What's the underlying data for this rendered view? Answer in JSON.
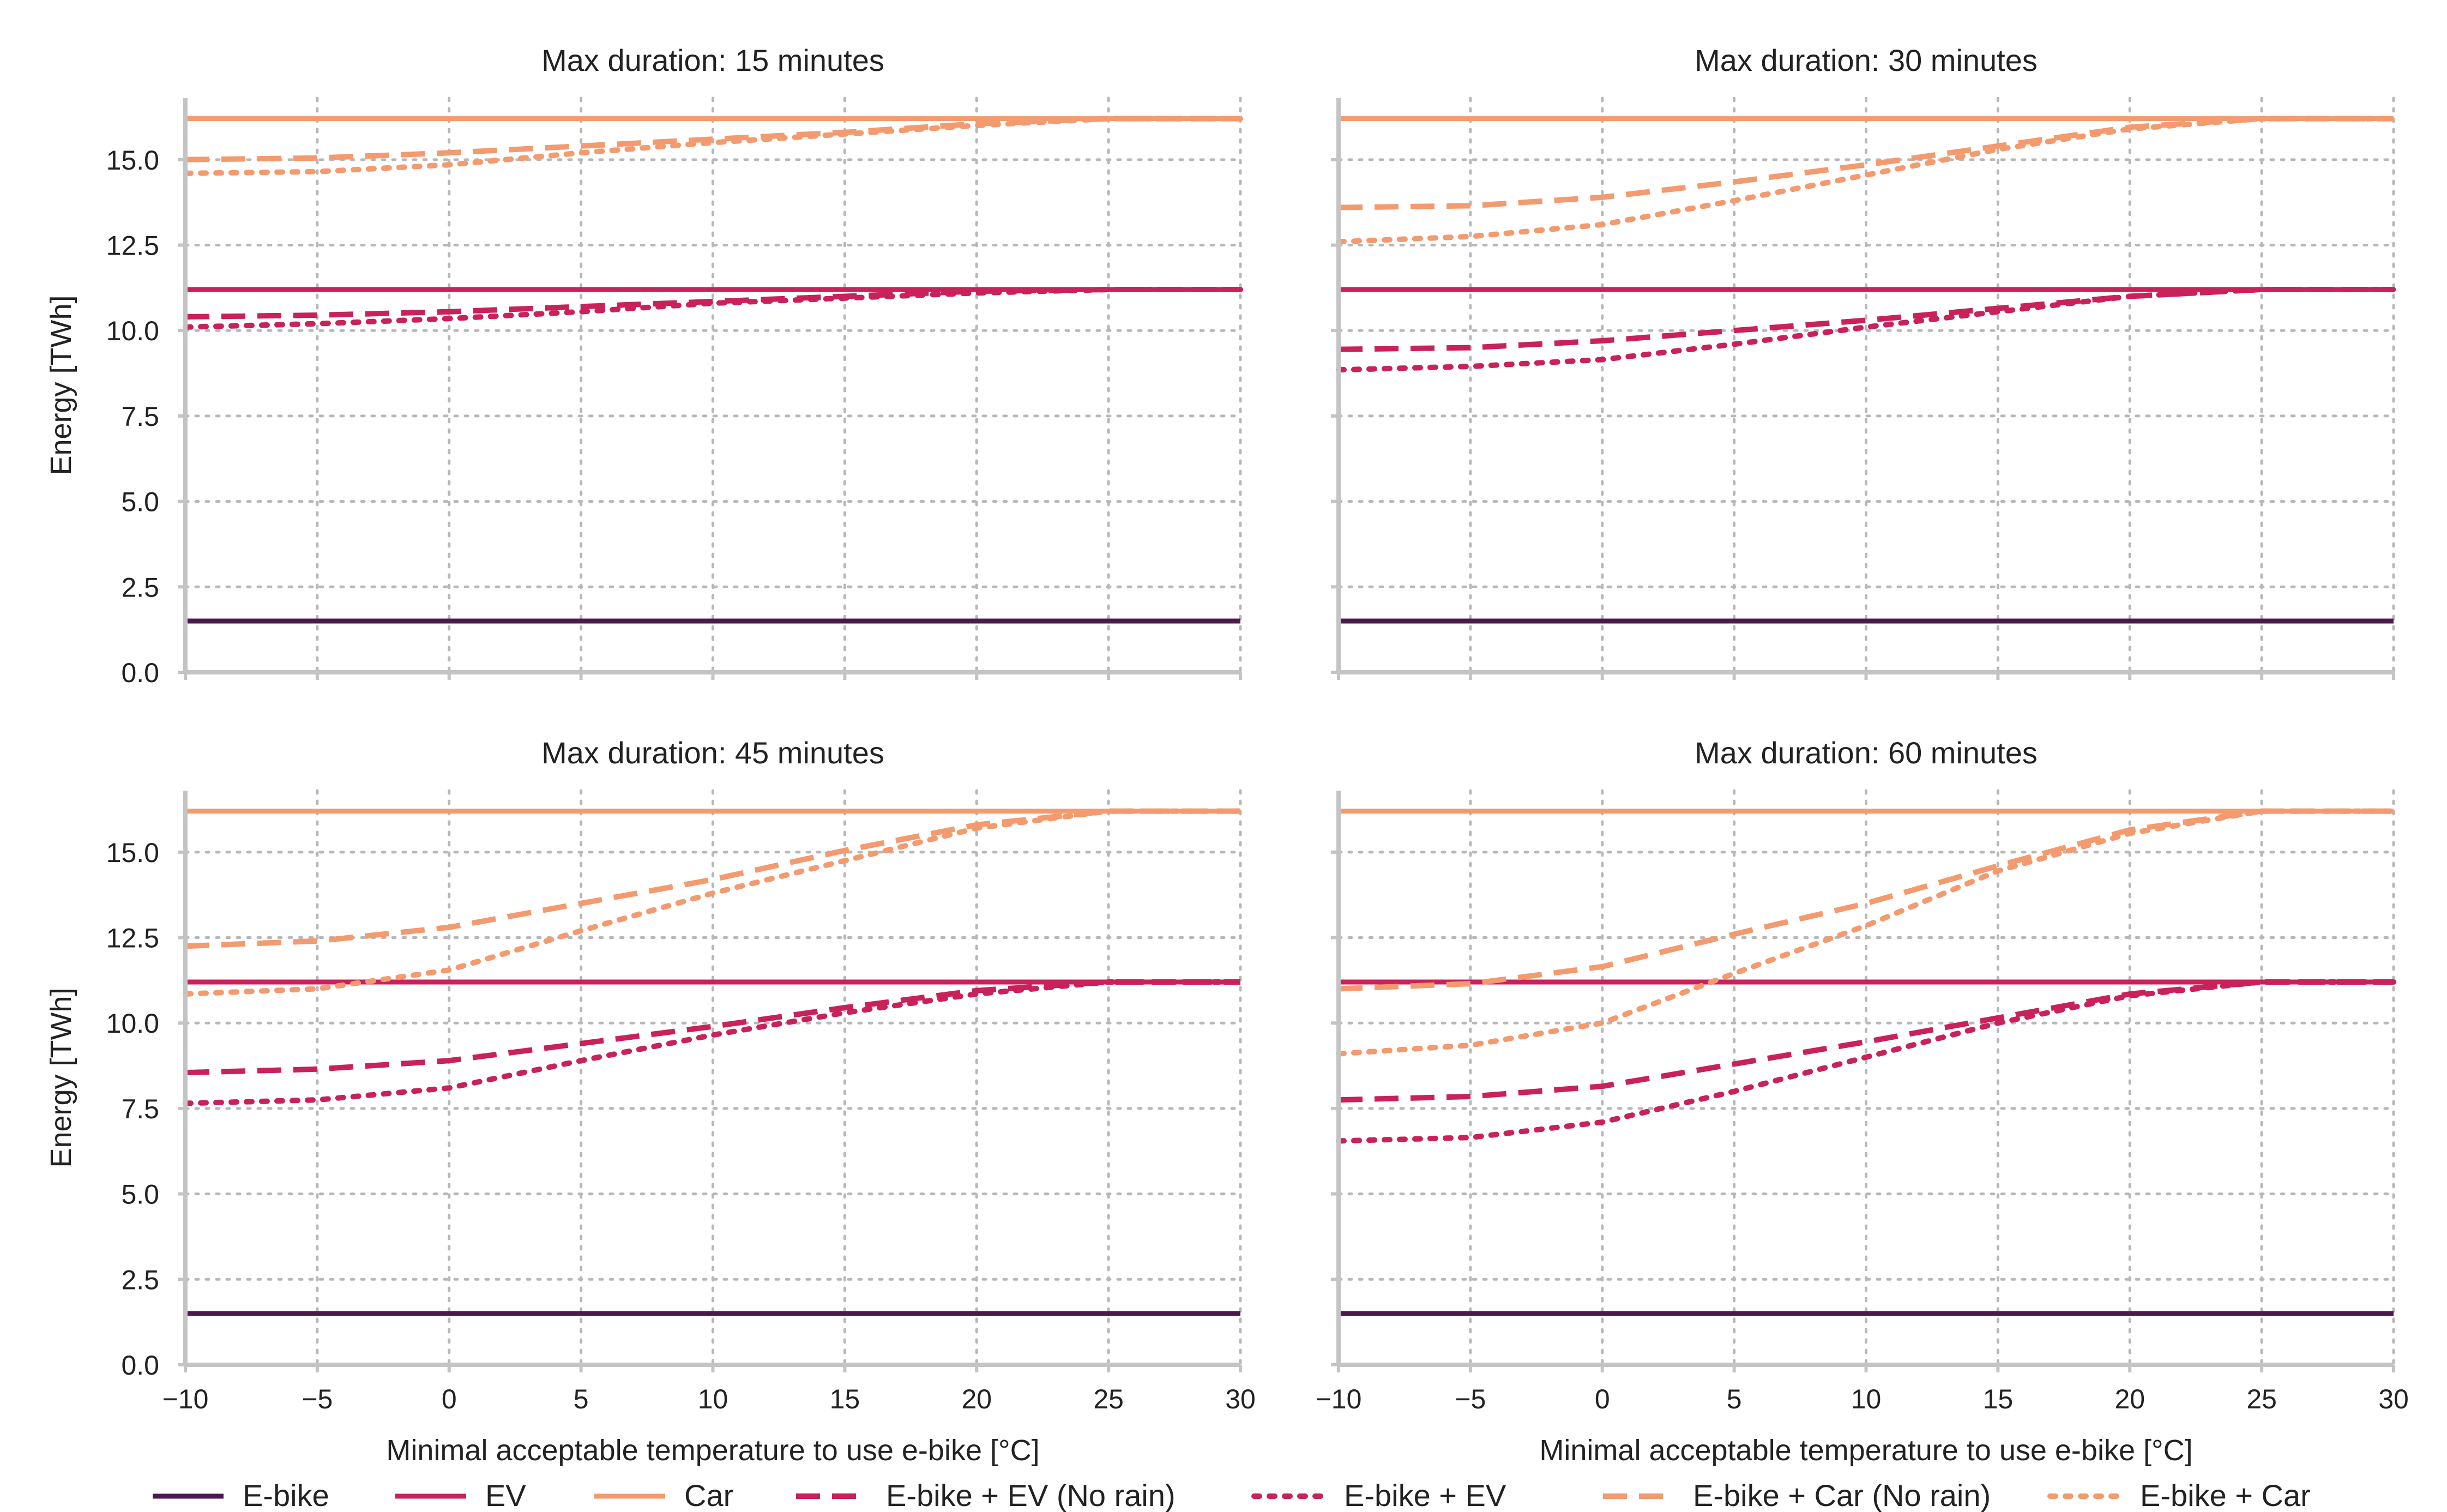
{
  "colors": {
    "ebike": "#4a1a4d",
    "ev": "#c9215a",
    "car": "#f39a6e",
    "grid": "#b8b8b8",
    "spine": "#c4c4c4"
  },
  "legend": [
    {
      "label": "E-bike",
      "color": "#4a1a4d",
      "style": "solid"
    },
    {
      "label": "EV",
      "color": "#c9215a",
      "style": "solid"
    },
    {
      "label": "Car",
      "color": "#f39a6e",
      "style": "solid"
    },
    {
      "label": "E-bike + EV (No rain)",
      "color": "#c9215a",
      "style": "dashed"
    },
    {
      "label": "E-bike + EV",
      "color": "#c9215a",
      "style": "dotted"
    },
    {
      "label": "E-bike + Car (No rain)",
      "color": "#f39a6e",
      "style": "dashed"
    },
    {
      "label": "E-bike + Car",
      "color": "#f39a6e",
      "style": "dotted"
    }
  ],
  "chart_data": [
    {
      "type": "line",
      "title": "Max duration: 15 minutes",
      "xlabel": "",
      "ylabel": "Energy [TWh]",
      "xlim": [
        -10,
        30
      ],
      "ylim": [
        0,
        16.8
      ],
      "xticks": [
        -10,
        -5,
        0,
        5,
        10,
        15,
        20,
        25,
        30
      ],
      "xtick_labels": [
        "−10",
        "−5",
        "0",
        "5",
        "10",
        "15",
        "20",
        "25",
        "30"
      ],
      "yticks": [
        0,
        2.5,
        5,
        7.5,
        10,
        12.5,
        15
      ],
      "ytick_labels": [
        "0.0",
        "2.5",
        "5.0",
        "7.5",
        "10.0",
        "12.5",
        "15.0"
      ],
      "show_xtick_labels": false,
      "show_ytick_labels": true,
      "grid": true,
      "x": [
        -10,
        -5,
        0,
        5,
        10,
        15,
        20,
        25,
        30
      ],
      "series": [
        {
          "name": "E-bike",
          "style": "solid",
          "color": "#4a1a4d",
          "values": [
            1.5,
            1.5,
            1.5,
            1.5,
            1.5,
            1.5,
            1.5,
            1.5,
            1.5
          ]
        },
        {
          "name": "EV",
          "style": "solid",
          "color": "#c9215a",
          "values": [
            11.2,
            11.2,
            11.2,
            11.2,
            11.2,
            11.2,
            11.2,
            11.2,
            11.2
          ]
        },
        {
          "name": "Car",
          "style": "solid",
          "color": "#f39a6e",
          "values": [
            16.2,
            16.2,
            16.2,
            16.2,
            16.2,
            16.2,
            16.2,
            16.2,
            16.2
          ]
        },
        {
          "name": "E-bike + EV (No rain)",
          "style": "dashed",
          "color": "#c9215a",
          "values": [
            10.4,
            10.45,
            10.55,
            10.7,
            10.85,
            11.0,
            11.15,
            11.2,
            11.2
          ]
        },
        {
          "name": "E-bike + EV",
          "style": "dotted",
          "color": "#c9215a",
          "values": [
            10.1,
            10.2,
            10.35,
            10.55,
            10.8,
            10.95,
            11.1,
            11.2,
            11.2
          ]
        },
        {
          "name": "E-bike + Car (No rain)",
          "style": "dashed",
          "color": "#f39a6e",
          "values": [
            15.0,
            15.05,
            15.2,
            15.4,
            15.6,
            15.8,
            16.05,
            16.2,
            16.2
          ]
        },
        {
          "name": "E-bike + Car",
          "style": "dotted",
          "color": "#f39a6e",
          "values": [
            14.6,
            14.65,
            14.85,
            15.2,
            15.5,
            15.75,
            16.0,
            16.2,
            16.2
          ]
        }
      ]
    },
    {
      "type": "line",
      "title": "Max duration: 30 minutes",
      "xlabel": "",
      "ylabel": "",
      "xlim": [
        -10,
        30
      ],
      "ylim": [
        0,
        16.8
      ],
      "xticks": [
        -10,
        -5,
        0,
        5,
        10,
        15,
        20,
        25,
        30
      ],
      "xtick_labels": [
        "−10",
        "−5",
        "0",
        "5",
        "10",
        "15",
        "20",
        "25",
        "30"
      ],
      "yticks": [
        0,
        2.5,
        5,
        7.5,
        10,
        12.5,
        15
      ],
      "ytick_labels": [
        "0.0",
        "2.5",
        "5.0",
        "7.5",
        "10.0",
        "12.5",
        "15.0"
      ],
      "show_xtick_labels": false,
      "show_ytick_labels": false,
      "grid": true,
      "x": [
        -10,
        -5,
        0,
        5,
        10,
        15,
        20,
        25,
        30
      ],
      "series": [
        {
          "name": "E-bike",
          "style": "solid",
          "color": "#4a1a4d",
          "values": [
            1.5,
            1.5,
            1.5,
            1.5,
            1.5,
            1.5,
            1.5,
            1.5,
            1.5
          ]
        },
        {
          "name": "EV",
          "style": "solid",
          "color": "#c9215a",
          "values": [
            11.2,
            11.2,
            11.2,
            11.2,
            11.2,
            11.2,
            11.2,
            11.2,
            11.2
          ]
        },
        {
          "name": "Car",
          "style": "solid",
          "color": "#f39a6e",
          "values": [
            16.2,
            16.2,
            16.2,
            16.2,
            16.2,
            16.2,
            16.2,
            16.2,
            16.2
          ]
        },
        {
          "name": "E-bike + EV (No rain)",
          "style": "dashed",
          "color": "#c9215a",
          "values": [
            9.45,
            9.5,
            9.7,
            10.0,
            10.3,
            10.65,
            11.0,
            11.2,
            11.2
          ]
        },
        {
          "name": "E-bike + EV",
          "style": "dotted",
          "color": "#c9215a",
          "values": [
            8.85,
            8.95,
            9.15,
            9.6,
            10.1,
            10.55,
            11.0,
            11.2,
            11.2
          ]
        },
        {
          "name": "E-bike + Car (No rain)",
          "style": "dashed",
          "color": "#f39a6e",
          "values": [
            13.6,
            13.65,
            13.9,
            14.35,
            14.85,
            15.4,
            15.95,
            16.2,
            16.2
          ]
        },
        {
          "name": "E-bike + Car",
          "style": "dotted",
          "color": "#f39a6e",
          "values": [
            12.6,
            12.75,
            13.1,
            13.8,
            14.55,
            15.3,
            15.9,
            16.2,
            16.2
          ]
        }
      ]
    },
    {
      "type": "line",
      "title": "Max duration: 45 minutes",
      "xlabel": "Minimal acceptable temperature to use e-bike [°C]",
      "ylabel": "Energy [TWh]",
      "xlim": [
        -10,
        30
      ],
      "ylim": [
        0,
        16.8
      ],
      "xticks": [
        -10,
        -5,
        0,
        5,
        10,
        15,
        20,
        25,
        30
      ],
      "xtick_labels": [
        "−10",
        "−5",
        "0",
        "5",
        "10",
        "15",
        "20",
        "25",
        "30"
      ],
      "yticks": [
        0,
        2.5,
        5,
        7.5,
        10,
        12.5,
        15
      ],
      "ytick_labels": [
        "0.0",
        "2.5",
        "5.0",
        "7.5",
        "10.0",
        "12.5",
        "15.0"
      ],
      "show_xtick_labels": true,
      "show_ytick_labels": true,
      "grid": true,
      "x": [
        -10,
        -5,
        0,
        5,
        10,
        15,
        20,
        25,
        30
      ],
      "series": [
        {
          "name": "E-bike",
          "style": "solid",
          "color": "#4a1a4d",
          "values": [
            1.5,
            1.5,
            1.5,
            1.5,
            1.5,
            1.5,
            1.5,
            1.5,
            1.5
          ]
        },
        {
          "name": "EV",
          "style": "solid",
          "color": "#c9215a",
          "values": [
            11.2,
            11.2,
            11.2,
            11.2,
            11.2,
            11.2,
            11.2,
            11.2,
            11.2
          ]
        },
        {
          "name": "Car",
          "style": "solid",
          "color": "#f39a6e",
          "values": [
            16.2,
            16.2,
            16.2,
            16.2,
            16.2,
            16.2,
            16.2,
            16.2,
            16.2
          ]
        },
        {
          "name": "E-bike + EV (No rain)",
          "style": "dashed",
          "color": "#c9215a",
          "values": [
            8.55,
            8.65,
            8.9,
            9.4,
            9.9,
            10.45,
            10.95,
            11.2,
            11.2
          ]
        },
        {
          "name": "E-bike + EV",
          "style": "dotted",
          "color": "#c9215a",
          "values": [
            7.65,
            7.75,
            8.1,
            8.9,
            9.65,
            10.3,
            10.85,
            11.2,
            11.2
          ]
        },
        {
          "name": "E-bike + Car (No rain)",
          "style": "dashed",
          "color": "#f39a6e",
          "values": [
            12.25,
            12.4,
            12.8,
            13.5,
            14.2,
            15.05,
            15.8,
            16.2,
            16.2
          ]
        },
        {
          "name": "E-bike + Car",
          "style": "dotted",
          "color": "#f39a6e",
          "values": [
            10.85,
            11.0,
            11.55,
            12.7,
            13.8,
            14.75,
            15.7,
            16.2,
            16.2
          ]
        }
      ]
    },
    {
      "type": "line",
      "title": "Max duration: 60 minutes",
      "xlabel": "Minimal acceptable temperature to use e-bike [°C]",
      "ylabel": "",
      "xlim": [
        -10,
        30
      ],
      "ylim": [
        0,
        16.8
      ],
      "xticks": [
        -10,
        -5,
        0,
        5,
        10,
        15,
        20,
        25,
        30
      ],
      "xtick_labels": [
        "−10",
        "−5",
        "0",
        "5",
        "10",
        "15",
        "20",
        "25",
        "30"
      ],
      "yticks": [
        0,
        2.5,
        5,
        7.5,
        10,
        12.5,
        15
      ],
      "ytick_labels": [
        "0.0",
        "2.5",
        "5.0",
        "7.5",
        "10.0",
        "12.5",
        "15.0"
      ],
      "show_xtick_labels": true,
      "show_ytick_labels": false,
      "grid": true,
      "x": [
        -10,
        -5,
        0,
        5,
        10,
        15,
        20,
        25,
        30
      ],
      "series": [
        {
          "name": "E-bike",
          "style": "solid",
          "color": "#4a1a4d",
          "values": [
            1.5,
            1.5,
            1.5,
            1.5,
            1.5,
            1.5,
            1.5,
            1.5,
            1.5
          ]
        },
        {
          "name": "EV",
          "style": "solid",
          "color": "#c9215a",
          "values": [
            11.2,
            11.2,
            11.2,
            11.2,
            11.2,
            11.2,
            11.2,
            11.2,
            11.2
          ]
        },
        {
          "name": "Car",
          "style": "solid",
          "color": "#f39a6e",
          "values": [
            16.2,
            16.2,
            16.2,
            16.2,
            16.2,
            16.2,
            16.2,
            16.2,
            16.2
          ]
        },
        {
          "name": "E-bike + EV (No rain)",
          "style": "dashed",
          "color": "#c9215a",
          "values": [
            7.75,
            7.85,
            8.15,
            8.8,
            9.45,
            10.15,
            10.85,
            11.2,
            11.2
          ]
        },
        {
          "name": "E-bike + EV",
          "style": "dotted",
          "color": "#c9215a",
          "values": [
            6.55,
            6.65,
            7.1,
            8.0,
            9.0,
            10.0,
            10.8,
            11.2,
            11.2
          ]
        },
        {
          "name": "E-bike + Car (No rain)",
          "style": "dashed",
          "color": "#f39a6e",
          "values": [
            11.0,
            11.15,
            11.65,
            12.6,
            13.5,
            14.6,
            15.65,
            16.2,
            16.2
          ]
        },
        {
          "name": "E-bike + Car",
          "style": "dotted",
          "color": "#f39a6e",
          "values": [
            9.1,
            9.35,
            10.0,
            11.45,
            12.85,
            14.45,
            15.55,
            16.2,
            16.2
          ]
        }
      ]
    }
  ]
}
